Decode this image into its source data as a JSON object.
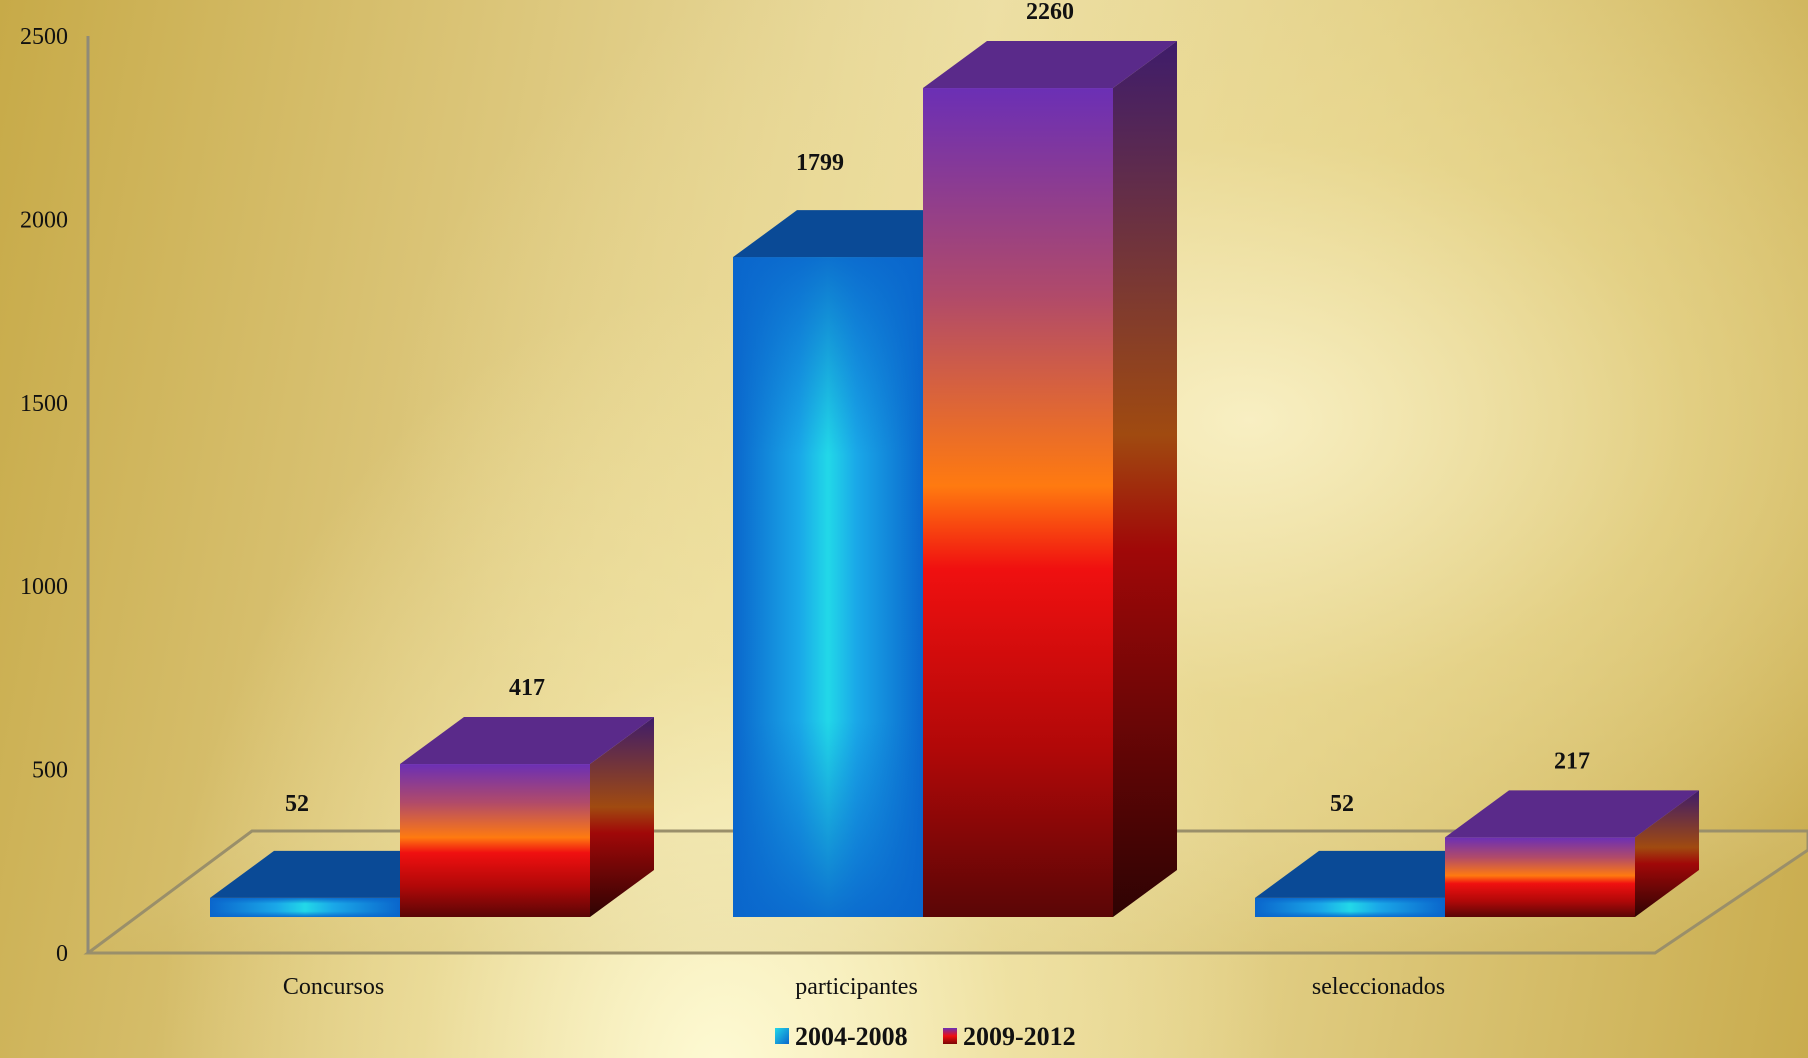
{
  "chart_data": {
    "type": "bar",
    "title": "",
    "xlabel": "",
    "ylabel": "",
    "categories": [
      "Concursos",
      "participantes",
      "seleccionados"
    ],
    "series": [
      {
        "name": "2004-2008",
        "values": [
          52,
          1799,
          52
        ],
        "color": "#1e7fe0"
      },
      {
        "name": "2009-2012",
        "values": [
          417,
          2260,
          217
        ],
        "color": "#d01010"
      }
    ],
    "ylim": [
      0,
      2500
    ],
    "yticks": [
      0,
      500,
      1000,
      1500,
      2000,
      2500
    ],
    "grid": false,
    "legend": "bottom",
    "style": "3d-column"
  }
}
